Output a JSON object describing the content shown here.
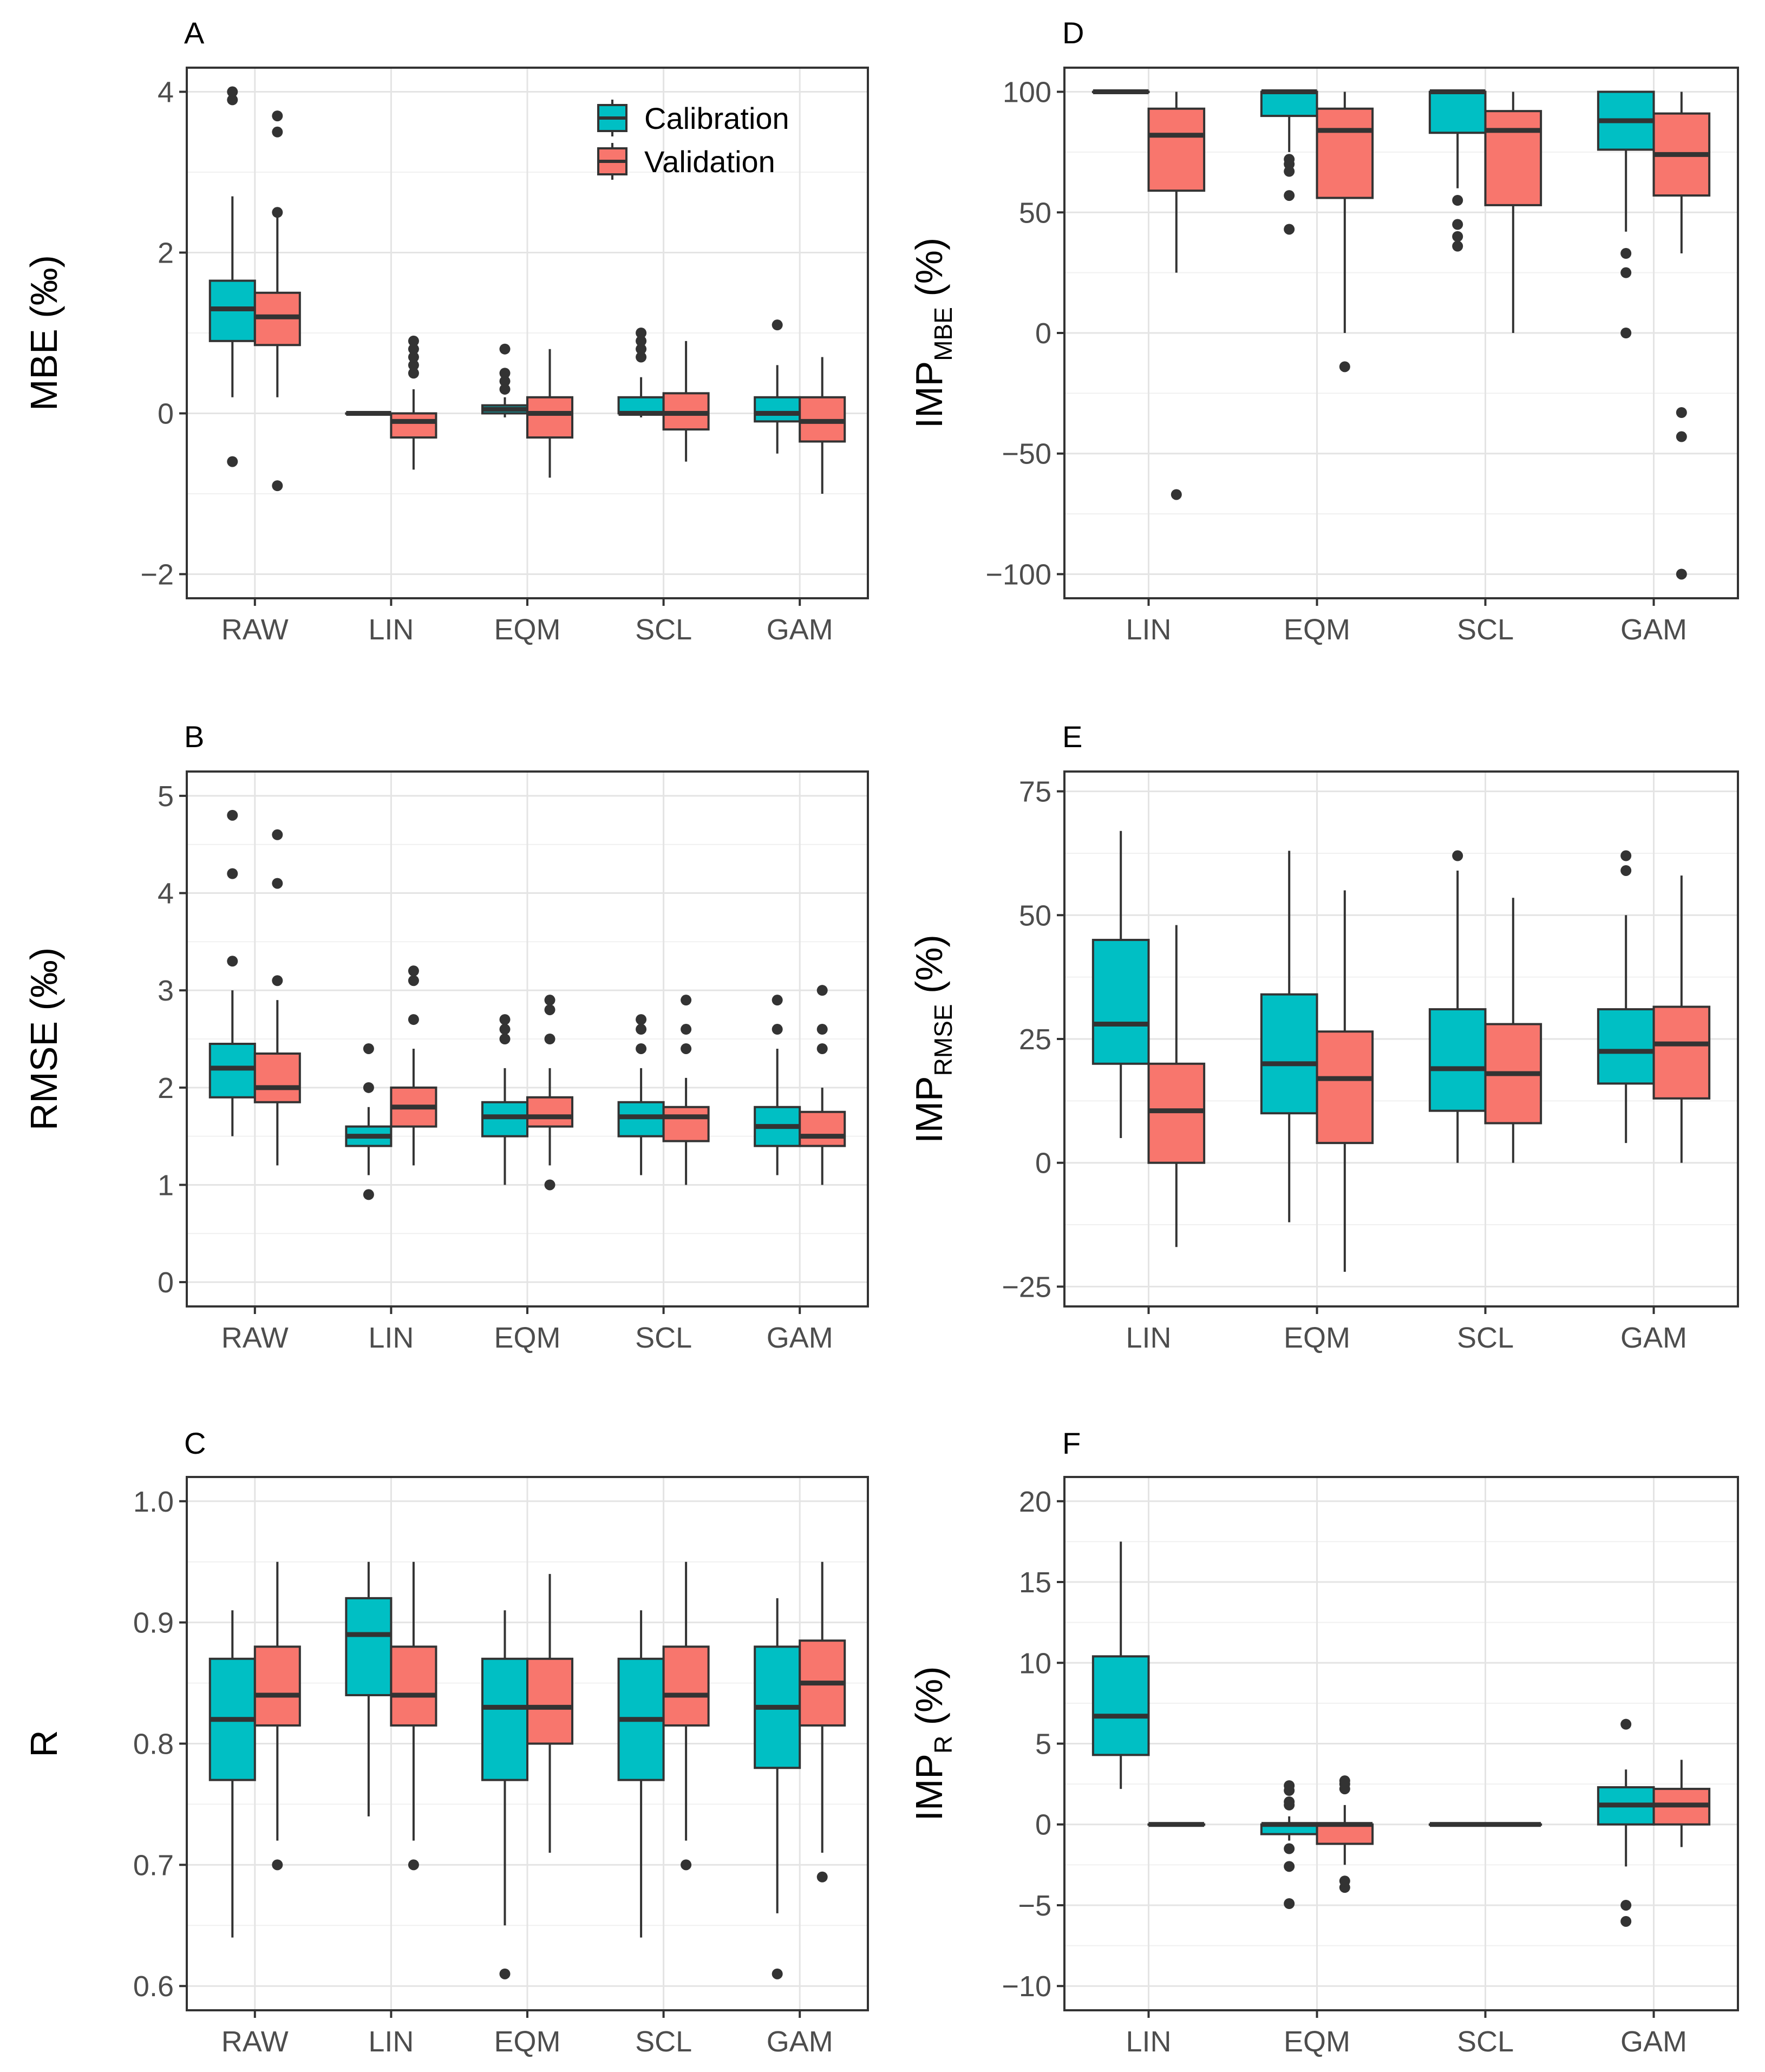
{
  "colors": {
    "calibration": "#00BFC4",
    "validation": "#F8766D"
  },
  "legend": [
    {
      "key": "calibration",
      "label": "Calibration"
    },
    {
      "key": "validation",
      "label": "Validation"
    }
  ],
  "chart_data": [
    {
      "id": "A",
      "type": "boxplot",
      "letter": "A",
      "ylabel": {
        "main": "MBE (‰)"
      },
      "ylim": [
        -2.3,
        4.3
      ],
      "yticks": [
        -2,
        0,
        2,
        4
      ],
      "ytick_labels": [
        "−2",
        "0",
        "2",
        "4"
      ],
      "minor_yticks": [
        -1,
        1,
        3
      ],
      "categories": [
        "RAW",
        "LIN",
        "EQM",
        "SCL",
        "GAM"
      ],
      "legend": true,
      "series": [
        {
          "name": "Calibration",
          "key": "calibration",
          "boxes": [
            {
              "cat": "RAW",
              "q1": 0.9,
              "med": 1.3,
              "q3": 1.65,
              "lo": 0.2,
              "hi": 2.7,
              "out": [
                -0.6,
                3.9,
                4.0
              ]
            },
            {
              "cat": "LIN",
              "q1": 0.0,
              "med": 0.0,
              "q3": 0.0,
              "lo": 0.0,
              "hi": 0.0,
              "out": []
            },
            {
              "cat": "EQM",
              "q1": 0.0,
              "med": 0.05,
              "q3": 0.1,
              "lo": -0.05,
              "hi": 0.2,
              "out": [
                0.3,
                0.4,
                0.5,
                0.8
              ]
            },
            {
              "cat": "SCL",
              "q1": 0.0,
              "med": 0.0,
              "q3": 0.2,
              "lo": -0.05,
              "hi": 0.45,
              "out": [
                0.7,
                0.8,
                0.9,
                1.0
              ]
            },
            {
              "cat": "GAM",
              "q1": -0.1,
              "med": 0.0,
              "q3": 0.2,
              "lo": -0.5,
              "hi": 0.6,
              "out": [
                1.1
              ]
            }
          ]
        },
        {
          "name": "Validation",
          "key": "validation",
          "boxes": [
            {
              "cat": "RAW",
              "q1": 0.85,
              "med": 1.2,
              "q3": 1.5,
              "lo": 0.2,
              "hi": 2.45,
              "out": [
                -0.9,
                2.5,
                3.5,
                3.7
              ]
            },
            {
              "cat": "LIN",
              "q1": -0.3,
              "med": -0.1,
              "q3": 0.0,
              "lo": -0.7,
              "hi": 0.3,
              "out": [
                0.5,
                0.6,
                0.7,
                0.8,
                0.9
              ]
            },
            {
              "cat": "EQM",
              "q1": -0.3,
              "med": 0.0,
              "q3": 0.2,
              "lo": -0.8,
              "hi": 0.8,
              "out": []
            },
            {
              "cat": "SCL",
              "q1": -0.2,
              "med": 0.0,
              "q3": 0.25,
              "lo": -0.6,
              "hi": 0.9,
              "out": []
            },
            {
              "cat": "GAM",
              "q1": -0.35,
              "med": -0.1,
              "q3": 0.2,
              "lo": -1.0,
              "hi": 0.7,
              "out": []
            }
          ]
        }
      ]
    },
    {
      "id": "B",
      "type": "boxplot",
      "letter": "B",
      "ylabel": {
        "main": "RMSE (‰)"
      },
      "ylim": [
        -0.25,
        5.25
      ],
      "yticks": [
        0,
        1,
        2,
        3,
        4,
        5
      ],
      "ytick_labels": [
        "0",
        "1",
        "2",
        "3",
        "4",
        "5"
      ],
      "minor_yticks": [
        0.5,
        1.5,
        2.5,
        3.5,
        4.5
      ],
      "categories": [
        "RAW",
        "LIN",
        "EQM",
        "SCL",
        "GAM"
      ],
      "legend": false,
      "series": [
        {
          "name": "Calibration",
          "key": "calibration",
          "boxes": [
            {
              "cat": "RAW",
              "q1": 1.9,
              "med": 2.2,
              "q3": 2.45,
              "lo": 1.5,
              "hi": 3.0,
              "out": [
                3.3,
                4.2,
                4.8
              ]
            },
            {
              "cat": "LIN",
              "q1": 1.4,
              "med": 1.5,
              "q3": 1.6,
              "lo": 1.1,
              "hi": 1.8,
              "out": [
                0.9,
                2.0,
                2.4
              ]
            },
            {
              "cat": "EQM",
              "q1": 1.5,
              "med": 1.7,
              "q3": 1.85,
              "lo": 1.0,
              "hi": 2.2,
              "out": [
                2.5,
                2.6,
                2.7
              ]
            },
            {
              "cat": "SCL",
              "q1": 1.5,
              "med": 1.7,
              "q3": 1.85,
              "lo": 1.1,
              "hi": 2.2,
              "out": [
                2.4,
                2.6,
                2.7
              ]
            },
            {
              "cat": "GAM",
              "q1": 1.4,
              "med": 1.6,
              "q3": 1.8,
              "lo": 1.1,
              "hi": 2.4,
              "out": [
                2.6,
                2.9
              ]
            }
          ]
        },
        {
          "name": "Validation",
          "key": "validation",
          "boxes": [
            {
              "cat": "RAW",
              "q1": 1.85,
              "med": 2.0,
              "q3": 2.35,
              "lo": 1.2,
              "hi": 2.9,
              "out": [
                3.1,
                4.1,
                4.6
              ]
            },
            {
              "cat": "LIN",
              "q1": 1.6,
              "med": 1.8,
              "q3": 2.0,
              "lo": 1.2,
              "hi": 2.4,
              "out": [
                2.7,
                3.1,
                3.2
              ]
            },
            {
              "cat": "EQM",
              "q1": 1.6,
              "med": 1.7,
              "q3": 1.9,
              "lo": 1.2,
              "hi": 2.2,
              "out": [
                1.0,
                2.5,
                2.8,
                2.9
              ]
            },
            {
              "cat": "SCL",
              "q1": 1.45,
              "med": 1.7,
              "q3": 1.8,
              "lo": 1.0,
              "hi": 2.1,
              "out": [
                2.4,
                2.6,
                2.9
              ]
            },
            {
              "cat": "GAM",
              "q1": 1.4,
              "med": 1.5,
              "q3": 1.75,
              "lo": 1.0,
              "hi": 2.0,
              "out": [
                2.4,
                2.6,
                3.0
              ]
            }
          ]
        }
      ]
    },
    {
      "id": "C",
      "type": "boxplot",
      "letter": "C",
      "ylabel": {
        "main": "R"
      },
      "ylim": [
        0.58,
        1.02
      ],
      "yticks": [
        0.6,
        0.7,
        0.8,
        0.9,
        1.0
      ],
      "ytick_labels": [
        "0.6",
        "0.7",
        "0.8",
        "0.9",
        "1.0"
      ],
      "minor_yticks": [
        0.65,
        0.75,
        0.85,
        0.95
      ],
      "categories": [
        "RAW",
        "LIN",
        "EQM",
        "SCL",
        "GAM"
      ],
      "legend": false,
      "series": [
        {
          "name": "Calibration",
          "key": "calibration",
          "boxes": [
            {
              "cat": "RAW",
              "q1": 0.77,
              "med": 0.82,
              "q3": 0.87,
              "lo": 0.64,
              "hi": 0.91,
              "out": []
            },
            {
              "cat": "LIN",
              "q1": 0.84,
              "med": 0.89,
              "q3": 0.92,
              "lo": 0.74,
              "hi": 0.95,
              "out": []
            },
            {
              "cat": "EQM",
              "q1": 0.77,
              "med": 0.83,
              "q3": 0.87,
              "lo": 0.65,
              "hi": 0.91,
              "out": [
                0.61
              ]
            },
            {
              "cat": "SCL",
              "q1": 0.77,
              "med": 0.82,
              "q3": 0.87,
              "lo": 0.64,
              "hi": 0.91,
              "out": []
            },
            {
              "cat": "GAM",
              "q1": 0.78,
              "med": 0.83,
              "q3": 0.88,
              "lo": 0.66,
              "hi": 0.92,
              "out": [
                0.61
              ]
            }
          ]
        },
        {
          "name": "Validation",
          "key": "validation",
          "boxes": [
            {
              "cat": "RAW",
              "q1": 0.815,
              "med": 0.84,
              "q3": 0.88,
              "lo": 0.72,
              "hi": 0.95,
              "out": [
                0.7
              ]
            },
            {
              "cat": "LIN",
              "q1": 0.815,
              "med": 0.84,
              "q3": 0.88,
              "lo": 0.72,
              "hi": 0.95,
              "out": [
                0.7
              ]
            },
            {
              "cat": "EQM",
              "q1": 0.8,
              "med": 0.83,
              "q3": 0.87,
              "lo": 0.71,
              "hi": 0.94,
              "out": []
            },
            {
              "cat": "SCL",
              "q1": 0.815,
              "med": 0.84,
              "q3": 0.88,
              "lo": 0.72,
              "hi": 0.95,
              "out": [
                0.7
              ]
            },
            {
              "cat": "GAM",
              "q1": 0.815,
              "med": 0.85,
              "q3": 0.885,
              "lo": 0.71,
              "hi": 0.95,
              "out": [
                0.69
              ]
            }
          ]
        }
      ]
    },
    {
      "id": "D",
      "type": "boxplot",
      "letter": "D",
      "ylabel": {
        "main": "IMP",
        "sub": "MBE",
        "suffix": " (%)"
      },
      "ylim": [
        -110,
        110
      ],
      "yticks": [
        -100,
        -50,
        0,
        50,
        100
      ],
      "ytick_labels": [
        "−100",
        "−50",
        "0",
        "50",
        "100"
      ],
      "minor_yticks": [
        -75,
        -25,
        25,
        75
      ],
      "categories": [
        "LIN",
        "EQM",
        "SCL",
        "GAM"
      ],
      "legend": false,
      "series": [
        {
          "name": "Calibration",
          "key": "calibration",
          "boxes": [
            {
              "cat": "LIN",
              "q1": 100,
              "med": 100,
              "q3": 100,
              "lo": 100,
              "hi": 100,
              "out": []
            },
            {
              "cat": "EQM",
              "q1": 90,
              "med": 100,
              "q3": 100,
              "lo": 75,
              "hi": 100,
              "out": [
                43,
                57,
                67,
                70,
                72
              ]
            },
            {
              "cat": "SCL",
              "q1": 83,
              "med": 100,
              "q3": 100,
              "lo": 60,
              "hi": 100,
              "out": [
                36,
                40,
                45,
                55
              ]
            },
            {
              "cat": "GAM",
              "q1": 76,
              "med": 88,
              "q3": 100,
              "lo": 42,
              "hi": 100,
              "out": [
                0,
                25,
                33
              ]
            }
          ]
        },
        {
          "name": "Validation",
          "key": "validation",
          "boxes": [
            {
              "cat": "LIN",
              "q1": 59,
              "med": 82,
              "q3": 93,
              "lo": 25,
              "hi": 100,
              "out": [
                -67
              ]
            },
            {
              "cat": "EQM",
              "q1": 56,
              "med": 84,
              "q3": 93,
              "lo": 0,
              "hi": 100,
              "out": [
                -14
              ]
            },
            {
              "cat": "SCL",
              "q1": 53,
              "med": 84,
              "q3": 92,
              "lo": 0,
              "hi": 100,
              "out": []
            },
            {
              "cat": "GAM",
              "q1": 57,
              "med": 74,
              "q3": 91,
              "lo": 33,
              "hi": 100,
              "out": [
                -100,
                -43,
                -33
              ]
            }
          ]
        }
      ]
    },
    {
      "id": "E",
      "type": "boxplot",
      "letter": "E",
      "ylabel": {
        "main": "IMP",
        "sub": "RMSE",
        "suffix": " (%)"
      },
      "ylim": [
        -29,
        79
      ],
      "yticks": [
        -25,
        0,
        25,
        50,
        75
      ],
      "ytick_labels": [
        "−25",
        "0",
        "25",
        "50",
        "75"
      ],
      "minor_yticks": [
        -12.5,
        12.5,
        37.5,
        62.5
      ],
      "categories": [
        "LIN",
        "EQM",
        "SCL",
        "GAM"
      ],
      "legend": false,
      "series": [
        {
          "name": "Calibration",
          "key": "calibration",
          "boxes": [
            {
              "cat": "LIN",
              "q1": 20,
              "med": 28,
              "q3": 45,
              "lo": 5,
              "hi": 67,
              "out": []
            },
            {
              "cat": "EQM",
              "q1": 10,
              "med": 20,
              "q3": 34,
              "lo": -12,
              "hi": 63,
              "out": []
            },
            {
              "cat": "SCL",
              "q1": 10.5,
              "med": 19,
              "q3": 31,
              "lo": 0,
              "hi": 59,
              "out": [
                62
              ]
            },
            {
              "cat": "GAM",
              "q1": 16,
              "med": 22.5,
              "q3": 31,
              "lo": 4,
              "hi": 50,
              "out": [
                59,
                62
              ]
            }
          ]
        },
        {
          "name": "Validation",
          "key": "validation",
          "boxes": [
            {
              "cat": "LIN",
              "q1": 0,
              "med": 10.5,
              "q3": 20,
              "lo": -17,
              "hi": 48,
              "out": []
            },
            {
              "cat": "EQM",
              "q1": 4,
              "med": 17,
              "q3": 26.5,
              "lo": -22,
              "hi": 55,
              "out": []
            },
            {
              "cat": "SCL",
              "q1": 8,
              "med": 18,
              "q3": 28,
              "lo": 0,
              "hi": 53.5,
              "out": []
            },
            {
              "cat": "GAM",
              "q1": 13,
              "med": 24,
              "q3": 31.5,
              "lo": 0,
              "hi": 58,
              "out": []
            }
          ]
        }
      ]
    },
    {
      "id": "F",
      "type": "boxplot",
      "letter": "F",
      "ylabel": {
        "main": "IMP",
        "sub": "R",
        "suffix": " (%)"
      },
      "ylim": [
        -11.5,
        21.5
      ],
      "yticks": [
        -10,
        -5,
        0,
        5,
        10,
        15,
        20
      ],
      "ytick_labels": [
        "−10",
        "−5",
        "0",
        "5",
        "10",
        "15",
        "20"
      ],
      "minor_yticks": [
        -7.5,
        -2.5,
        2.5,
        7.5,
        12.5,
        17.5
      ],
      "categories": [
        "LIN",
        "EQM",
        "SCL",
        "GAM"
      ],
      "legend": false,
      "series": [
        {
          "name": "Calibration",
          "key": "calibration",
          "boxes": [
            {
              "cat": "LIN",
              "q1": 4.3,
              "med": 6.7,
              "q3": 10.4,
              "lo": 2.2,
              "hi": 17.5,
              "out": []
            },
            {
              "cat": "EQM",
              "q1": -0.6,
              "med": 0,
              "q3": 0,
              "lo": -1,
              "hi": 0.5,
              "out": [
                -4.9,
                -2.6,
                -1.5,
                1.2,
                1.4,
                2.1,
                2.4
              ]
            },
            {
              "cat": "SCL",
              "q1": 0,
              "med": 0,
              "q3": 0,
              "lo": 0,
              "hi": 0,
              "out": []
            },
            {
              "cat": "GAM",
              "q1": 0,
              "med": 1.2,
              "q3": 2.3,
              "lo": -2.6,
              "hi": 3.4,
              "out": [
                -6,
                -5,
                6.2
              ]
            }
          ]
        },
        {
          "name": "Validation",
          "key": "validation",
          "boxes": [
            {
              "cat": "LIN",
              "q1": 0,
              "med": 0,
              "q3": 0,
              "lo": 0,
              "hi": 0,
              "out": []
            },
            {
              "cat": "EQM",
              "q1": -1.2,
              "med": 0,
              "q3": 0,
              "lo": -2.5,
              "hi": 1.2,
              "out": [
                -3.9,
                -3.5,
                2.2,
                2.5,
                2.7
              ]
            },
            {
              "cat": "SCL",
              "q1": 0,
              "med": 0,
              "q3": 0,
              "lo": 0,
              "hi": 0,
              "out": []
            },
            {
              "cat": "GAM",
              "q1": 0,
              "med": 1.2,
              "q3": 2.2,
              "lo": -1.4,
              "hi": 4,
              "out": []
            }
          ]
        }
      ]
    }
  ]
}
